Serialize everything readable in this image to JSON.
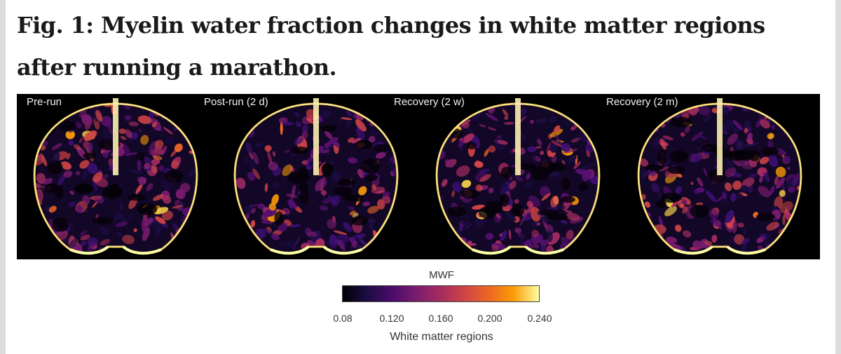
{
  "figure": {
    "title": "Fig. 1: Myelin water fraction changes in white matter regions after running a marathon."
  },
  "panels": [
    {
      "label": "Pre-run"
    },
    {
      "label": "Post-run (2 d)"
    },
    {
      "label": "Recovery (2 w)"
    },
    {
      "label": "Recovery (2 m)"
    }
  ],
  "colorbar": {
    "title": "MWF",
    "ticks": [
      "0.08",
      "0.120",
      "0.160",
      "0.200",
      "0.240"
    ],
    "min": 0.08,
    "max": 0.24,
    "colormap": "inferno",
    "caption": "White matter regions"
  },
  "colors": {
    "background": "#ffffff",
    "image_background": "#000000",
    "low": "#000004",
    "high": "#fcffa4"
  }
}
